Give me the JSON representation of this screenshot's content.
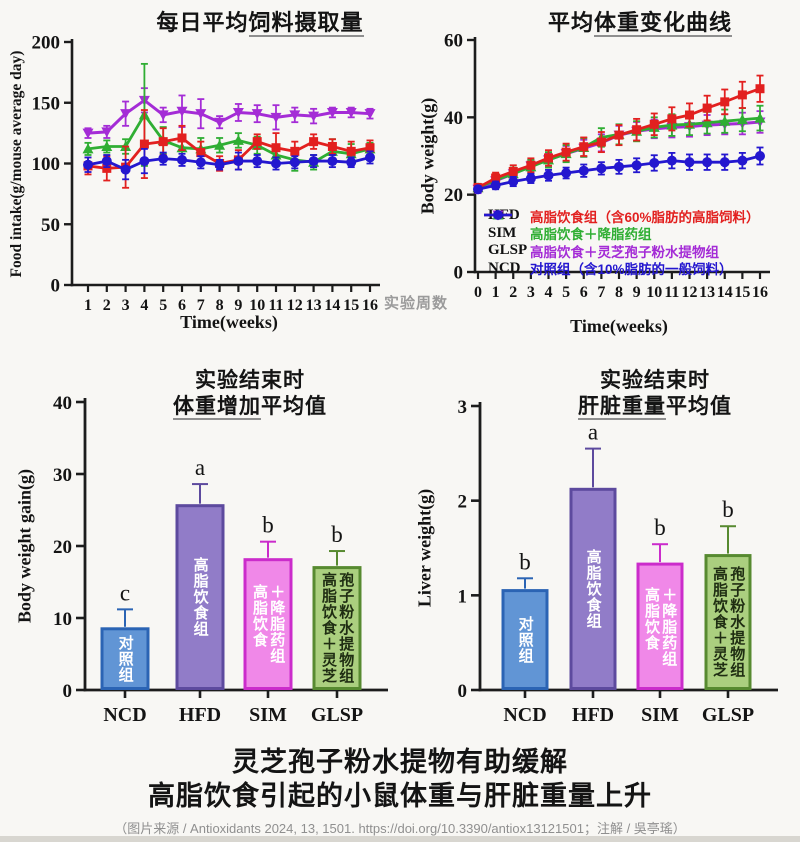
{
  "page": {
    "caption_line1": "灵芝孢子粉水提物有助缓解",
    "caption_line2": "高脂饮食引起的小鼠体重与肝脏重量上升",
    "source_note": "（图片来源 / Antioxidants 2024, 13, 1501. https://doi.org/10.3390/antiox13121501；注解 / 吳亭瑤）"
  },
  "colors": {
    "axis": "#1c1c1c",
    "hfd": "#e2201f",
    "sim": "#2fae33",
    "glsp": "#a42cd6",
    "ncd": "#2417cf",
    "side_note": "#9b9b9b",
    "source_text": "#8f8f8f",
    "bottom_strip": "#d8d6d0",
    "background": "#f8f7f4"
  },
  "chart_data": [
    {
      "id": "food-intake",
      "type": "line",
      "title_prefix": "每日平均",
      "title_underline": "饲料摄取量",
      "xlabel": "Time(weeks)",
      "ylabel": "Food intake(g/mouse average day)",
      "ylim": [
        0,
        200
      ],
      "yticks": [
        0,
        50,
        100,
        150,
        200
      ],
      "x": [
        1,
        2,
        3,
        4,
        5,
        6,
        7,
        8,
        9,
        10,
        11,
        12,
        13,
        14,
        15,
        16
      ],
      "series": [
        {
          "name": "GLSP",
          "marker": "triangle-down",
          "color": "#a42cd6",
          "line_width": 3,
          "values": [
            125,
            126,
            141,
            152,
            140,
            143,
            141,
            134,
            142,
            141,
            138,
            140,
            139,
            142,
            142,
            141
          ],
          "errors": [
            4,
            5,
            10,
            10,
            6,
            13,
            12,
            5,
            7,
            7,
            10,
            6,
            6,
            4,
            4,
            4
          ]
        },
        {
          "name": "SIM",
          "marker": "triangle-up",
          "color": "#2fae33",
          "line_width": 2.8,
          "values": [
            112,
            114,
            114,
            140,
            119,
            113,
            112,
            115,
            119,
            115,
            107,
            103,
            101,
            110,
            108,
            112
          ],
          "errors": [
            5,
            5,
            6,
            42,
            11,
            8,
            9,
            6,
            6,
            7,
            8,
            9,
            6,
            10,
            8,
            5
          ]
        },
        {
          "name": "HFD",
          "marker": "square",
          "color": "#e2201f",
          "line_width": 2.8,
          "values": [
            98,
            96,
            97,
            116,
            118,
            121,
            109,
            100,
            103,
            118,
            113,
            110,
            118,
            114,
            110,
            113
          ],
          "errors": [
            7,
            10,
            17,
            28,
            11,
            10,
            9,
            6,
            8,
            6,
            12,
            8,
            6,
            6,
            8,
            6
          ]
        },
        {
          "name": "NCD",
          "marker": "circle",
          "color": "#2417cf",
          "line_width": 2.8,
          "values": [
            99,
            102,
            95,
            102,
            104,
            103,
            101,
            99,
            102,
            102,
            100,
            101,
            102,
            102,
            101,
            105
          ],
          "errors": [
            6,
            5,
            8,
            10,
            5,
            5,
            5,
            4,
            7,
            5,
            5,
            5,
            5,
            5,
            4,
            5
          ]
        }
      ]
    },
    {
      "id": "body-weight",
      "type": "line",
      "title_prefix": "平均",
      "title_underline": "体重变化曲线",
      "xlabel": "Time(weeks)",
      "ylabel": "Body weight(g)",
      "x_side_note": "实验周数",
      "ylim": [
        0,
        60
      ],
      "yticks": [
        0,
        20,
        40,
        60
      ],
      "x": [
        0,
        1,
        2,
        3,
        4,
        5,
        6,
        7,
        8,
        9,
        10,
        11,
        12,
        13,
        14,
        15,
        16
      ],
      "series": [
        {
          "name": "GLSP",
          "marker": "triangle-down",
          "color": "#a42cd6",
          "line_width": 3,
          "values": [
            21.4,
            23.6,
            25.4,
            27.4,
            29,
            30.6,
            32,
            33.4,
            35.4,
            36.4,
            37,
            37.4,
            37.6,
            38,
            38.2,
            38.4,
            38.8
          ],
          "errors": [
            1,
            1.2,
            1.4,
            1.6,
            1.8,
            2,
            2.2,
            2.2,
            2.4,
            2.4,
            2.4,
            2.6,
            2.6,
            2.6,
            2.6,
            2.8,
            2.8
          ]
        },
        {
          "name": "SIM",
          "marker": "triangle-up",
          "color": "#2fae33",
          "line_width": 2.8,
          "values": [
            21.8,
            23.8,
            25.4,
            27.2,
            29,
            30.6,
            32.2,
            34.8,
            35.6,
            36.4,
            37.4,
            38,
            38.2,
            38.6,
            39,
            39.4,
            39.8
          ],
          "errors": [
            1,
            1.4,
            1.6,
            1.8,
            2,
            2.2,
            2.4,
            2.4,
            2.6,
            2.6,
            2.6,
            2.8,
            2.8,
            2.8,
            3,
            3,
            3.2
          ]
        },
        {
          "name": "HFD",
          "marker": "square",
          "color": "#e2201f",
          "line_width": 2.8,
          "values": [
            21.8,
            24.3,
            26,
            27.6,
            29.5,
            31,
            32.4,
            33.6,
            35.4,
            36.8,
            38.2,
            39.6,
            40.6,
            42.4,
            44,
            45.8,
            47.4
          ],
          "errors": [
            1,
            1.4,
            1.6,
            1.8,
            2,
            2.2,
            2.4,
            2.6,
            2.6,
            2.8,
            2.8,
            3,
            3,
            3.2,
            3.2,
            3.4,
            3.4
          ]
        },
        {
          "name": "NCD",
          "marker": "circle",
          "color": "#2417cf",
          "line_width": 2.8,
          "values": [
            21.4,
            22.4,
            23.4,
            24.2,
            25,
            25.6,
            26.2,
            26.8,
            27.2,
            27.6,
            28.2,
            28.8,
            28.4,
            28.4,
            28.4,
            28.8,
            30
          ],
          "errors": [
            0.8,
            1,
            1.2,
            1.2,
            1.4,
            1.4,
            1.6,
            1.6,
            1.8,
            1.8,
            2,
            2,
            2,
            2,
            2,
            2,
            2.2
          ]
        }
      ],
      "legend": [
        {
          "code": "HFD",
          "marker": "square",
          "color": "#e2201f",
          "desc": "高脂饮食组（含60%脂肪的高脂饲料）"
        },
        {
          "code": "SIM",
          "marker": "triangle-up",
          "color": "#2fae33",
          "desc": "高脂饮食＋降脂药组"
        },
        {
          "code": "GLSP",
          "marker": "triangle-down",
          "color": "#a42cd6",
          "desc": "高脂饮食＋灵芝孢子粉水提物组"
        },
        {
          "code": "NCD",
          "marker": "circle",
          "color": "#2417cf",
          "desc": "对照组（含10%脂肪的一般饲料）"
        }
      ]
    },
    {
      "id": "weight-gain",
      "type": "bar",
      "title_line1": "实验结束时",
      "title_underline": "体重增加",
      "title_rest": "平均值",
      "ylabel": "Body weight gain(g)",
      "ylim": [
        0,
        40
      ],
      "yticks": [
        0,
        10,
        20,
        30,
        40
      ],
      "categories": [
        "NCD",
        "HFD",
        "SIM",
        "GLSP"
      ],
      "values": [
        8.5,
        25.6,
        18.1,
        17.0
      ],
      "errors": [
        2.7,
        3.0,
        2.5,
        2.3
      ],
      "sig_letters": [
        "c",
        "a",
        "b",
        "b"
      ],
      "bar_labels": [
        [
          "对照组"
        ],
        [
          "高脂饮食组"
        ],
        [
          "高脂饮食",
          "＋降脂药组"
        ],
        [
          "高脂饮食＋灵芝",
          "孢子粉水提物组"
        ]
      ],
      "bar_styles": [
        {
          "fill": "#6195d5",
          "border": "#2b64b4",
          "text": "#ffffff"
        },
        {
          "fill": "#917cc8",
          "border": "#5d4a9e",
          "text": "#ffffff"
        },
        {
          "fill": "#f088e8",
          "border": "#cb2ccb",
          "text": "#ffffff"
        },
        {
          "fill": "#abcf7f",
          "border": "#578a30",
          "text": "#1f2d12"
        }
      ]
    },
    {
      "id": "liver-weight",
      "type": "bar",
      "title_line1": "实验结束时",
      "title_underline": "肝脏重量",
      "title_rest": "平均值",
      "ylabel": "Liver weight(g)",
      "ylim": [
        0,
        3
      ],
      "yticks": [
        0,
        1,
        2,
        3
      ],
      "categories": [
        "NCD",
        "HFD",
        "SIM",
        "GLSP"
      ],
      "values": [
        1.05,
        2.12,
        1.33,
        1.42
      ],
      "errors": [
        0.13,
        0.43,
        0.21,
        0.31
      ],
      "sig_letters": [
        "b",
        "a",
        "b",
        "b"
      ],
      "bar_labels": [
        [
          "对照组"
        ],
        [
          "高脂饮食组"
        ],
        [
          "高脂饮食",
          "＋降脂药组"
        ],
        [
          "高脂饮食＋灵芝",
          "孢子粉水提物组"
        ]
      ],
      "bar_styles": [
        {
          "fill": "#6195d5",
          "border": "#2b64b4",
          "text": "#ffffff"
        },
        {
          "fill": "#917cc8",
          "border": "#5d4a9e",
          "text": "#ffffff"
        },
        {
          "fill": "#f088e8",
          "border": "#cb2ccb",
          "text": "#ffffff"
        },
        {
          "fill": "#abcf7f",
          "border": "#578a30",
          "text": "#1f2d12"
        }
      ]
    }
  ]
}
